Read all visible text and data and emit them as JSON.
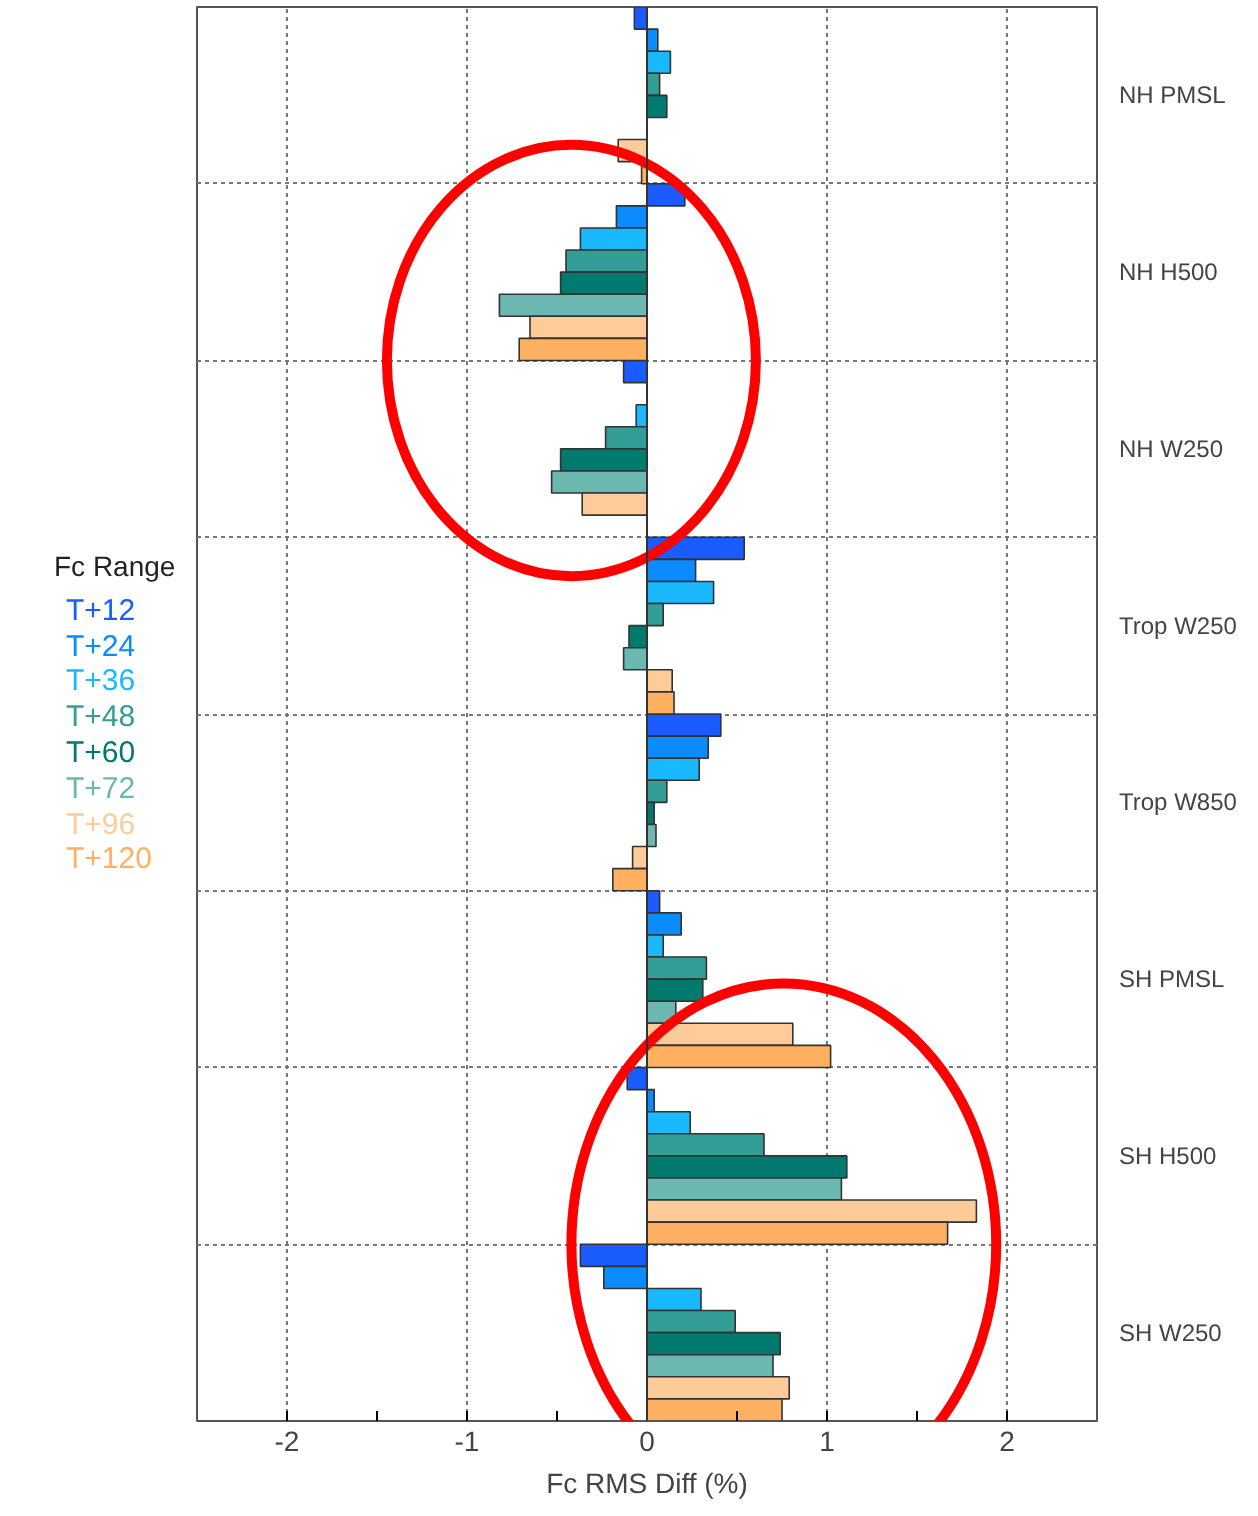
{
  "chart_data": {
    "type": "bar",
    "orientation": "horizontal",
    "xlabel": "Fc RMS Diff (%)",
    "legend_title": "Fc Range",
    "legend": "left",
    "grid": true,
    "categories": [
      "NH PMSL",
      "NH H500",
      "NH W250",
      "Trop W250",
      "Trop W850",
      "SH PMSL",
      "SH H500",
      "SH W250"
    ],
    "xlim": [
      -2.5,
      2.5
    ],
    "xticks": [
      -2,
      {
        "value": -1.5,
        "label": null
      },
      -1,
      {
        "value": -0.5,
        "label": null
      },
      0,
      {
        "value": 0.5,
        "label": null
      },
      1,
      {
        "value": 1.5,
        "label": null
      },
      2
    ],
    "ref_lines": [
      {
        "axis": "x",
        "value": 0,
        "color": "#333333"
      }
    ],
    "series": [
      {
        "name": "T+12",
        "color": "#1a5cff",
        "values": [
          -0.07,
          0.21,
          -0.13,
          0.54,
          0.41,
          0.07,
          -0.11,
          -0.37
        ]
      },
      {
        "name": "T+24",
        "color": "#0a8cff",
        "values": [
          0.06,
          -0.17,
          0,
          0.27,
          0.34,
          0.19,
          0.04,
          -0.24
        ]
      },
      {
        "name": "T+36",
        "color": "#1ab8ff",
        "values": [
          0.13,
          -0.37,
          -0.06,
          0.37,
          0.29,
          0.09,
          0.24,
          0.3
        ]
      },
      {
        "name": "T+48",
        "color": "#339e96",
        "values": [
          0.07,
          -0.45,
          -0.23,
          0.09,
          0.11,
          0.33,
          0.65,
          0.49
        ]
      },
      {
        "name": "T+60",
        "color": "#007a6e",
        "values": [
          0.11,
          -0.48,
          -0.48,
          -0.1,
          0.04,
          0.31,
          1.11,
          0.74
        ]
      },
      {
        "name": "T+72",
        "color": "#6ab8b0",
        "values": [
          0,
          -0.82,
          -0.53,
          -0.13,
          0.05,
          0.16,
          1.08,
          0.7
        ]
      },
      {
        "name": "T+96",
        "color": "#ffcc99",
        "values": [
          -0.16,
          -0.65,
          -0.36,
          0.14,
          -0.08,
          0.81,
          1.83,
          0.79
        ]
      },
      {
        "name": "T+120",
        "color": "#ffb060",
        "values": [
          -0.03,
          -0.71,
          0,
          0.15,
          -0.19,
          1.02,
          1.67,
          0.75
        ]
      }
    ]
  }
}
